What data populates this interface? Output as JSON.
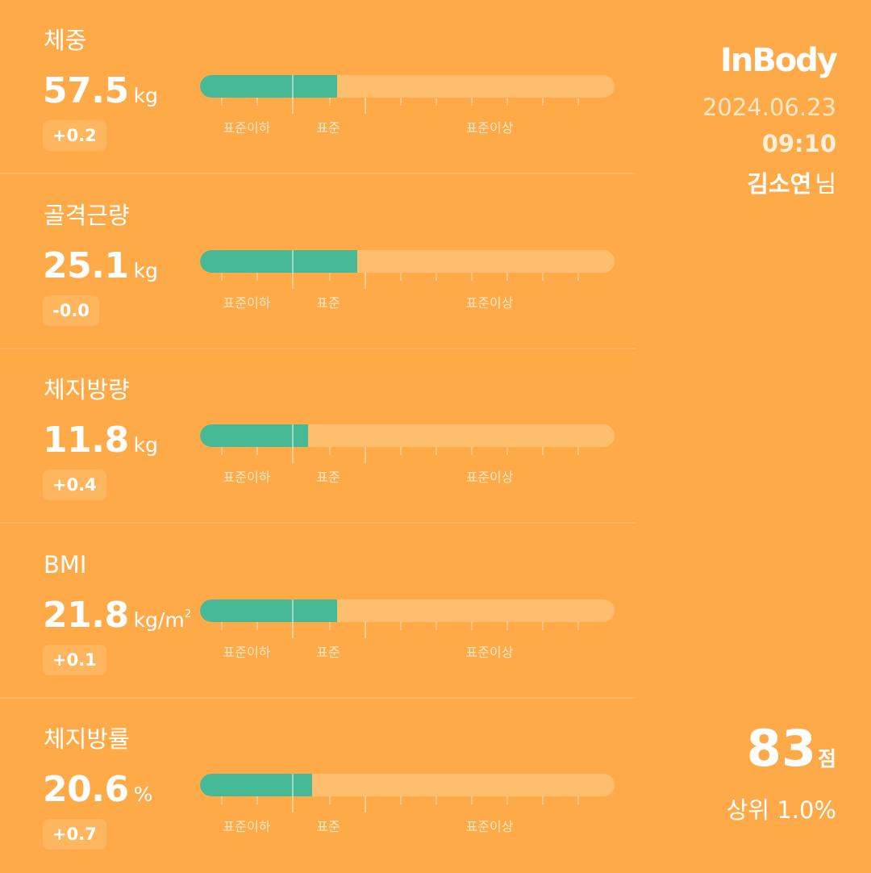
{
  "brand": {
    "logo": "InBody"
  },
  "session": {
    "date": "2024.06.23",
    "time": "09:10",
    "user_name": "김소연",
    "user_suffix": "님"
  },
  "score": {
    "value": "83",
    "unit": "점",
    "rank_text": "상위 1.0%"
  },
  "range_labels": {
    "low": "표준이하",
    "normal": "표준",
    "high": "표준이상"
  },
  "colors": {
    "background": "#FFAA48",
    "bar_fill": "#48B996",
    "bar_track": "#FFBE6E"
  },
  "metrics": [
    {
      "label": "체중",
      "value": "57.5",
      "unit": "kg",
      "unit_sup": "",
      "change": "+0.2",
      "bar_level_pct": 33
    },
    {
      "label": "골격근량",
      "value": "25.1",
      "unit": "kg",
      "unit_sup": "",
      "change": "-0.0",
      "bar_level_pct": 38
    },
    {
      "label": "체지방량",
      "value": "11.8",
      "unit": "kg",
      "unit_sup": "",
      "change": "+0.4",
      "bar_level_pct": 26
    },
    {
      "label": "BMI",
      "value": "21.8",
      "unit": "kg/m",
      "unit_sup": "2",
      "change": "+0.1",
      "bar_level_pct": 33
    },
    {
      "label": "체지방률",
      "value": "20.6",
      "unit": "%",
      "unit_sup": "",
      "change": "+0.7",
      "bar_level_pct": 27
    }
  ]
}
